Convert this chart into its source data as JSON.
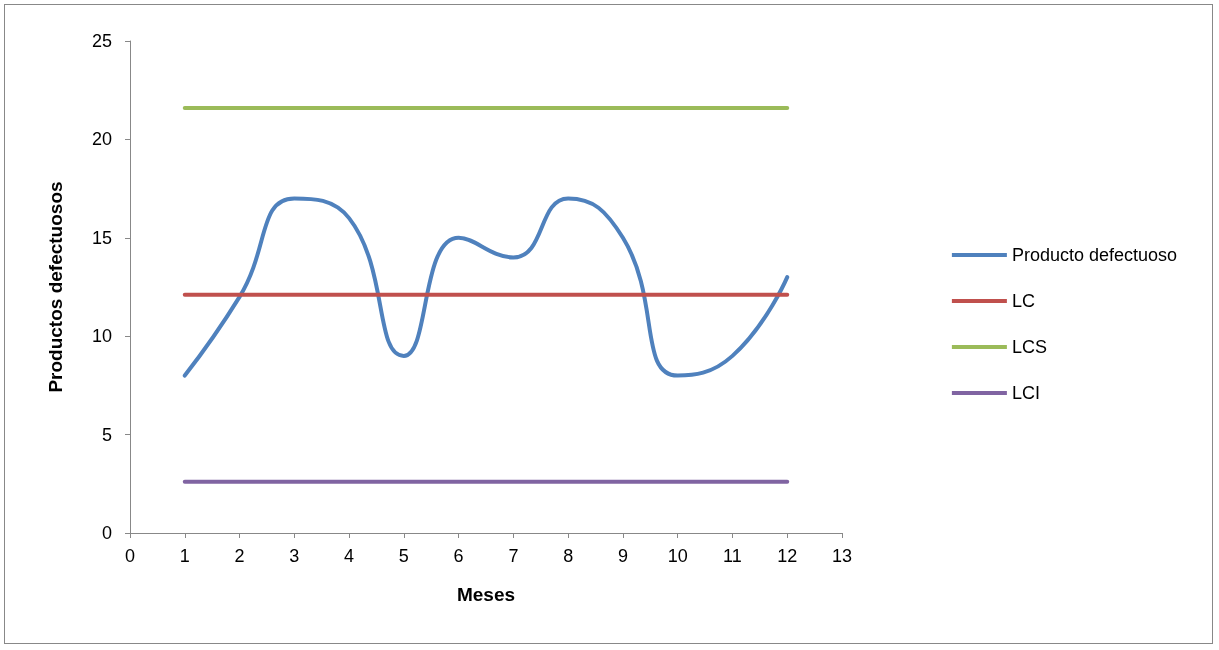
{
  "chart_data": {
    "type": "line",
    "xlabel": "Meses",
    "ylabel": "Productos defectuosos",
    "x": [
      1,
      2,
      3,
      4,
      5,
      6,
      7,
      8,
      9,
      10,
      11,
      12
    ],
    "series": [
      {
        "name": "Producto defectuoso",
        "color": "#4f81bd",
        "values": [
          8,
          12,
          17,
          16,
          9,
          15,
          14,
          17,
          15,
          8,
          9,
          13
        ]
      },
      {
        "name": "LC",
        "color": "#c0504d",
        "values": [
          12.1,
          12.1,
          12.1,
          12.1,
          12.1,
          12.1,
          12.1,
          12.1,
          12.1,
          12.1,
          12.1,
          12.1
        ]
      },
      {
        "name": "LCS",
        "color": "#9bbb59",
        "values": [
          21.6,
          21.6,
          21.6,
          21.6,
          21.6,
          21.6,
          21.6,
          21.6,
          21.6,
          21.6,
          21.6,
          21.6
        ]
      },
      {
        "name": "LCI",
        "color": "#8064a2",
        "values": [
          2.6,
          2.6,
          2.6,
          2.6,
          2.6,
          2.6,
          2.6,
          2.6,
          2.6,
          2.6,
          2.6,
          2.6
        ]
      }
    ],
    "xlim": [
      0,
      13
    ],
    "xticks": [
      0,
      1,
      2,
      3,
      4,
      5,
      6,
      7,
      8,
      9,
      10,
      11,
      12,
      13
    ],
    "ylim": [
      0,
      25
    ],
    "yticks": [
      0,
      5,
      10,
      15,
      20,
      25
    ],
    "grid": false,
    "legend": "right",
    "marker": "none",
    "line_style": "solid"
  }
}
